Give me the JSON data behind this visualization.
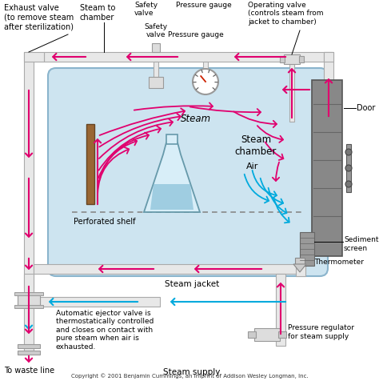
{
  "bg_color": "#ffffff",
  "chamber_fill": "#cde4f0",
  "pipe_fc": "#e8e8e8",
  "pipe_ec": "#aaaaaa",
  "door_fill": "#888888",
  "steam_color": "#e0006e",
  "air_color": "#00aadd",
  "flask_fill": "#d8eef8",
  "flask_ec": "#6699aa",
  "heater_fill": "#996633",
  "heater_ec": "#664422",
  "copyright": "Copyright © 2001 Benjamin Cummings, an imprint of Addison Wesley Longman, Inc.",
  "labels": {
    "exhaust_valve": "Exhaust valve\n(to remove steam\nafter sterilization)",
    "steam_to_chamber": "Steam to\nchamber",
    "safety_valve": "Safety\nvalve",
    "pressure_gauge": "Pressure gauge",
    "operating_valve": "Operating valve\n(controls steam from\njacket to chamber)",
    "steam": "Steam",
    "steam_chamber": "Steam\nchamber",
    "air": "Air",
    "perforated_shelf": "Perforated shelf",
    "door": "Door",
    "sediment_screen": "Sediment\nscreen",
    "thermometer": "Thermometer",
    "steam_jacket": "Steam jacket",
    "ejector_valve": "Automatic ejector valve is\nthermostatically controlled\nand closes on contact with\npure steam when air is\nexhausted.",
    "pressure_regulator": "Pressure regulator\nfor steam supply",
    "steam_supply": "Steam supply",
    "to_waste": "To waste line"
  },
  "figsize": [
    4.74,
    4.76
  ],
  "dpi": 100
}
